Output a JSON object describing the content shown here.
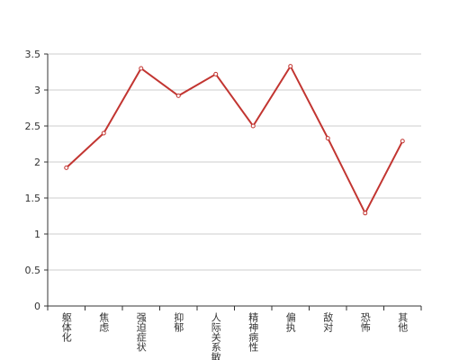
{
  "chart_data": {
    "type": "line",
    "categories": [
      "躯体化",
      "焦虑",
      "强迫症状",
      "抑郁",
      "人际关系敏感",
      "精神病性",
      "偏执",
      "敌对",
      "恐怖",
      "其他"
    ],
    "values": [
      1.92,
      2.4,
      3.3,
      2.92,
      3.22,
      2.5,
      3.33,
      2.33,
      1.29,
      2.29
    ],
    "color": "#c23531",
    "ylim": [
      0,
      3.5
    ],
    "yticks": [
      0,
      0.5,
      1,
      1.5,
      2,
      2.5,
      3,
      3.5
    ],
    "grid": true
  }
}
